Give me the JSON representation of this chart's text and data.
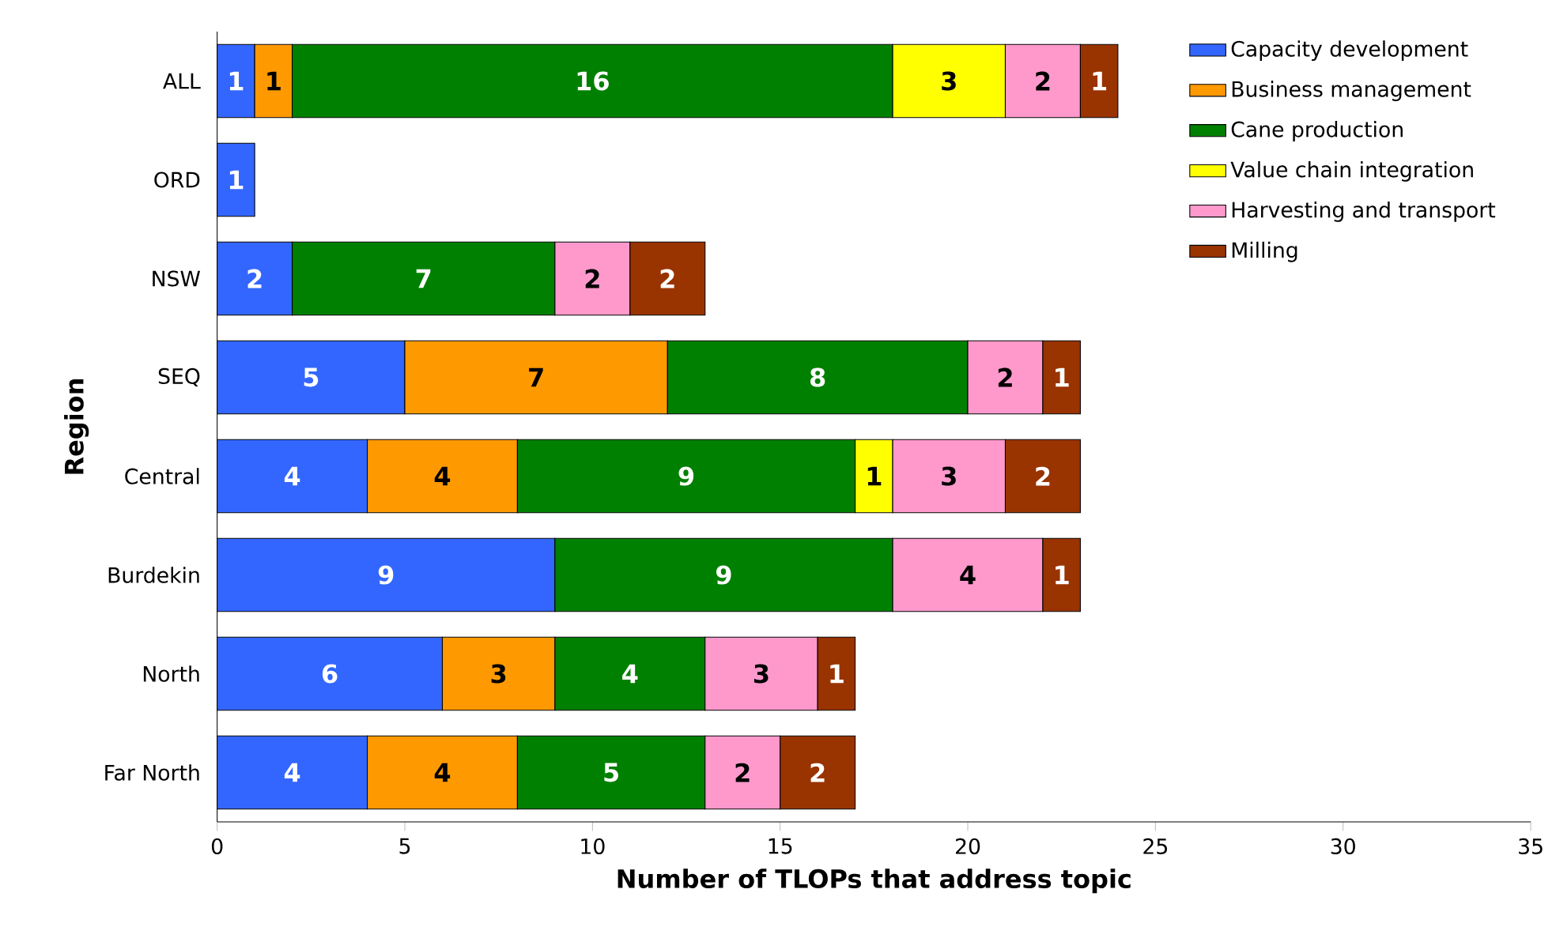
{
  "chart_data": {
    "type": "bar",
    "orientation": "horizontal",
    "stacked": true,
    "data_labels": true,
    "xlabel": "Number of TLOPs that address topic",
    "ylabel": "Region",
    "categories": [
      "ALL",
      "ORD",
      "NSW",
      "SEQ",
      "Central",
      "Burdekin",
      "North",
      "Far North"
    ],
    "xlim": [
      0,
      35
    ],
    "xticks": [
      0,
      5,
      10,
      15,
      20,
      25,
      30,
      35
    ],
    "grid": false,
    "legend": "top right",
    "series": [
      {
        "name": "Capacity development",
        "color": "#3366ff",
        "values": [
          1,
          1,
          2,
          5,
          4,
          9,
          6,
          4
        ]
      },
      {
        "name": "Business management",
        "color": "#ff9900",
        "values": [
          1,
          null,
          null,
          7,
          4,
          null,
          3,
          4
        ]
      },
      {
        "name": "Cane production",
        "color": "#008000",
        "values": [
          16,
          null,
          7,
          8,
          9,
          9,
          4,
          5
        ]
      },
      {
        "name": "Value chain integration",
        "color": "#ffff00",
        "values": [
          3,
          null,
          null,
          null,
          1,
          null,
          null,
          null
        ]
      },
      {
        "name": "Harvesting and transport",
        "color": "#ff99cc",
        "values": [
          2,
          null,
          2,
          2,
          3,
          4,
          3,
          2
        ]
      },
      {
        "name": "Milling",
        "color": "#993300",
        "values": [
          1,
          null,
          2,
          1,
          2,
          1,
          1,
          2
        ]
      }
    ]
  }
}
